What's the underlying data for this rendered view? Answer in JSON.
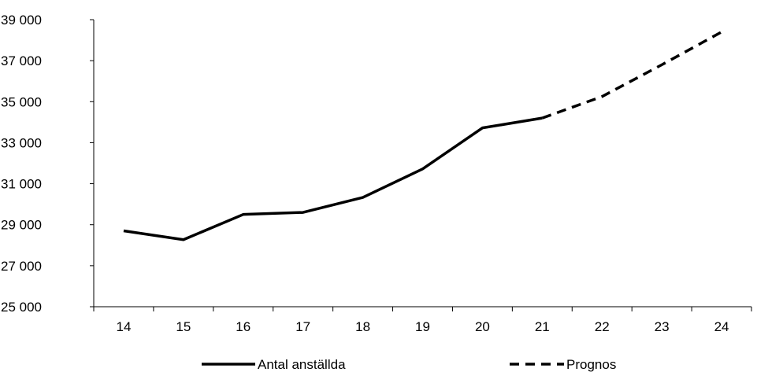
{
  "chart_data": {
    "type": "line",
    "categories": [
      "14",
      "15",
      "16",
      "17",
      "18",
      "19",
      "20",
      "21",
      "22",
      "23",
      "24"
    ],
    "series": [
      {
        "name": "Antal anställda",
        "style": "solid",
        "values": [
          28700,
          28270,
          29500,
          29600,
          30330,
          31720,
          33720,
          34200,
          null,
          null,
          null
        ]
      },
      {
        "name": "Prognos",
        "style": "dashed",
        "values": [
          null,
          null,
          null,
          null,
          null,
          null,
          null,
          34200,
          35250,
          36800,
          38400
        ]
      }
    ],
    "y_ticks": [
      25000,
      27000,
      29000,
      31000,
      33000,
      35000,
      37000,
      39000
    ],
    "y_tick_labels": [
      "25 000",
      "27 000",
      "29 000",
      "31 000",
      "33 000",
      "35 000",
      "37 000",
      "39 000"
    ],
    "ylim": [
      25000,
      39000
    ],
    "grid": false,
    "legend_position": "bottom",
    "title": "",
    "xlabel": "",
    "ylabel": "",
    "colors": {
      "line": "#000000",
      "axis": "#000000",
      "background": "#ffffff"
    }
  }
}
